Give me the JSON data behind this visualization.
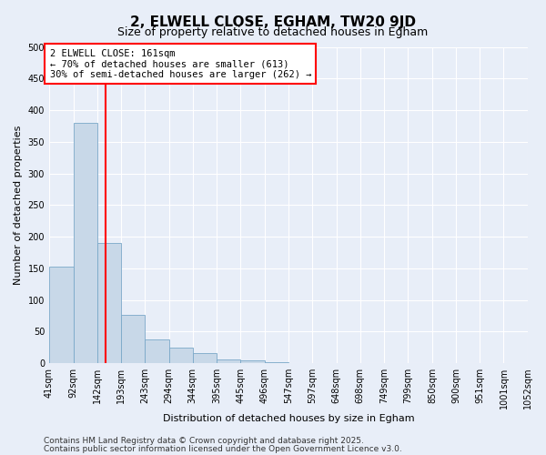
{
  "title": "2, ELWELL CLOSE, EGHAM, TW20 9JD",
  "subtitle": "Size of property relative to detached houses in Egham",
  "xlabel": "Distribution of detached houses by size in Egham",
  "ylabel": "Number of detached properties",
  "bar_values": [
    152,
    380,
    190,
    76,
    38,
    25,
    16,
    6,
    5,
    1,
    0,
    0,
    0,
    0,
    0,
    0,
    0,
    0,
    0,
    0
  ],
  "bin_labels": [
    "41sqm",
    "92sqm",
    "142sqm",
    "193sqm",
    "243sqm",
    "294sqm",
    "344sqm",
    "395sqm",
    "445sqm",
    "496sqm",
    "547sqm",
    "597sqm",
    "648sqm",
    "698sqm",
    "749sqm",
    "799sqm",
    "850sqm",
    "900sqm",
    "951sqm",
    "1001sqm",
    "1052sqm"
  ],
  "bin_edges": [
    41,
    92,
    142,
    193,
    243,
    294,
    344,
    395,
    445,
    496,
    547,
    597,
    648,
    698,
    749,
    799,
    850,
    900,
    951,
    1001,
    1052
  ],
  "bar_color": "#c8d8e8",
  "bar_edgecolor": "#7aa8c8",
  "red_line_x": 161,
  "ylim": [
    0,
    500
  ],
  "yticks": [
    0,
    50,
    100,
    150,
    200,
    250,
    300,
    350,
    400,
    450,
    500
  ],
  "annotation_title": "2 ELWELL CLOSE: 161sqm",
  "annotation_line1": "← 70% of detached houses are smaller (613)",
  "annotation_line2": "30% of semi-detached houses are larger (262) →",
  "footer1": "Contains HM Land Registry data © Crown copyright and database right 2025.",
  "footer2": "Contains public sector information licensed under the Open Government Licence v3.0.",
  "background_color": "#e8eef8",
  "grid_color": "#ffffff",
  "title_fontsize": 11,
  "subtitle_fontsize": 9,
  "axis_label_fontsize": 8,
  "tick_fontsize": 7,
  "annotation_fontsize": 7.5,
  "footer_fontsize": 6.5
}
